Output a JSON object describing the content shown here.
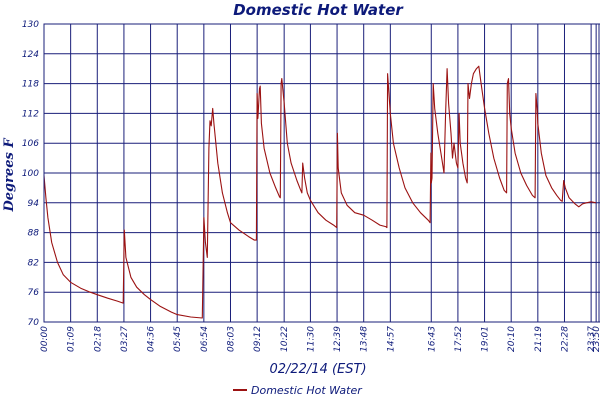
{
  "colors": {
    "text": "#0d1a7a",
    "grid": "#1a1f7a",
    "series": "#9b1212",
    "background": "#ffffff"
  },
  "chart_data": {
    "type": "line",
    "title": "Domestic Hot Water",
    "xlabel": "02/22/14 (EST)",
    "ylabel": "Degrees F",
    "ylim": [
      70,
      130
    ],
    "yticks": [
      70,
      76,
      82,
      88,
      94,
      100,
      106,
      112,
      118,
      124,
      130
    ],
    "xlim_hours": [
      0,
      24.0
    ],
    "xticks": [
      "00:00",
      "01:09",
      "02:18",
      "03:27",
      "04:36",
      "05:45",
      "06:54",
      "08:03",
      "09:12",
      "10:22",
      "11:30",
      "12:39",
      "13:48",
      "14:57",
      "16:43",
      "17:52",
      "19:01",
      "20:10",
      "21:19",
      "22:28",
      "23:37",
      "23:50"
    ],
    "grid": true,
    "legend": {
      "position": "bottom-center",
      "entries": [
        "Domestic Hot Water"
      ]
    },
    "series": [
      {
        "name": "Domestic Hot Water",
        "points": [
          [
            "00:00",
            99.5
          ],
          [
            "00:05",
            95
          ],
          [
            "00:10",
            91
          ],
          [
            "00:20",
            86
          ],
          [
            "00:35",
            82
          ],
          [
            "00:50",
            79.5
          ],
          [
            "01:09",
            78
          ],
          [
            "01:35",
            76.8
          ],
          [
            "02:00",
            76
          ],
          [
            "02:18",
            75.5
          ],
          [
            "02:45",
            74.8
          ],
          [
            "03:10",
            74.2
          ],
          [
            "03:25",
            73.8
          ],
          [
            "03:28",
            88.5
          ],
          [
            "03:32",
            83
          ],
          [
            "03:45",
            79
          ],
          [
            "04:00",
            77
          ],
          [
            "04:20",
            75.5
          ],
          [
            "04:36",
            74.5
          ],
          [
            "05:00",
            73.2
          ],
          [
            "05:30",
            72
          ],
          [
            "05:45",
            71.5
          ],
          [
            "06:20",
            71
          ],
          [
            "06:50",
            70.8
          ],
          [
            "06:54",
            91
          ],
          [
            "06:58",
            86
          ],
          [
            "07:03",
            83
          ],
          [
            "07:07",
            105
          ],
          [
            "07:10",
            110.5
          ],
          [
            "07:13",
            109.5
          ],
          [
            "07:17",
            113
          ],
          [
            "07:20",
            110
          ],
          [
            "07:30",
            102
          ],
          [
            "07:42",
            96
          ],
          [
            "07:55",
            92
          ],
          [
            "08:03",
            90
          ],
          [
            "08:25",
            88.5
          ],
          [
            "08:50",
            87.2
          ],
          [
            "09:05",
            86.5
          ],
          [
            "09:10",
            86.5
          ],
          [
            "09:12",
            116
          ],
          [
            "09:14",
            111
          ],
          [
            "09:18",
            117
          ],
          [
            "09:20",
            117.5
          ],
          [
            "09:23",
            110
          ],
          [
            "09:30",
            105
          ],
          [
            "09:45",
            100
          ],
          [
            "10:00",
            97
          ],
          [
            "10:10",
            95.2
          ],
          [
            "10:12",
            95
          ],
          [
            "10:14",
            118
          ],
          [
            "10:16",
            119
          ],
          [
            "10:22",
            114
          ],
          [
            "10:30",
            106
          ],
          [
            "10:40",
            102
          ],
          [
            "10:55",
            98.5
          ],
          [
            "11:05",
            96.5
          ],
          [
            "11:08",
            96
          ],
          [
            "11:10",
            102
          ],
          [
            "11:15",
            99
          ],
          [
            "11:22",
            96
          ],
          [
            "11:30",
            94.5
          ],
          [
            "11:50",
            92
          ],
          [
            "12:10",
            90.5
          ],
          [
            "12:30",
            89.5
          ],
          [
            "12:38",
            89
          ],
          [
            "12:40",
            108
          ],
          [
            "12:42",
            101
          ],
          [
            "12:50",
            96
          ],
          [
            "13:05",
            93.5
          ],
          [
            "13:25",
            92
          ],
          [
            "13:48",
            91.5
          ],
          [
            "14:10",
            90.5
          ],
          [
            "14:30",
            89.5
          ],
          [
            "14:45",
            89.2
          ],
          [
            "14:48",
            89
          ],
          [
            "14:50",
            120
          ],
          [
            "14:57",
            112
          ],
          [
            "15:05",
            106
          ],
          [
            "15:20",
            101
          ],
          [
            "15:35",
            97
          ],
          [
            "15:55",
            94
          ],
          [
            "16:15",
            92
          ],
          [
            "16:35",
            90.5
          ],
          [
            "16:40",
            90
          ],
          [
            "16:42",
            104
          ],
          [
            "16:43",
            98
          ],
          [
            "16:45",
            99
          ],
          [
            "16:48",
            118
          ],
          [
            "16:52",
            113
          ],
          [
            "17:00",
            108
          ],
          [
            "17:10",
            103
          ],
          [
            "17:16",
            100
          ],
          [
            "17:20",
            112
          ],
          [
            "17:24",
            121
          ],
          [
            "17:28",
            114
          ],
          [
            "17:34",
            108
          ],
          [
            "17:38",
            103
          ],
          [
            "17:42",
            106
          ],
          [
            "17:48",
            102
          ],
          [
            "17:52",
            101
          ],
          [
            "17:55",
            112
          ],
          [
            "17:58",
            106
          ],
          [
            "18:05",
            102
          ],
          [
            "18:12",
            99
          ],
          [
            "18:16",
            98
          ],
          [
            "18:18",
            118
          ],
          [
            "18:22",
            115
          ],
          [
            "18:27",
            118
          ],
          [
            "18:32",
            120
          ],
          [
            "18:40",
            121
          ],
          [
            "18:46",
            121.5
          ],
          [
            "18:52",
            118
          ],
          [
            "19:01",
            113
          ],
          [
            "19:12",
            108
          ],
          [
            "19:25",
            103
          ],
          [
            "19:40",
            99
          ],
          [
            "19:52",
            96.5
          ],
          [
            "19:58",
            96
          ],
          [
            "20:00",
            118
          ],
          [
            "20:03",
            119
          ],
          [
            "20:06",
            112
          ],
          [
            "20:10",
            109
          ],
          [
            "20:20",
            104
          ],
          [
            "20:35",
            100
          ],
          [
            "20:50",
            97.5
          ],
          [
            "21:05",
            95.5
          ],
          [
            "21:12",
            95
          ],
          [
            "21:14",
            116
          ],
          [
            "21:17",
            113
          ],
          [
            "21:19",
            110
          ],
          [
            "21:28",
            104
          ],
          [
            "21:40",
            99.5
          ],
          [
            "21:55",
            97
          ],
          [
            "22:08",
            95.5
          ],
          [
            "22:18",
            94.5
          ],
          [
            "22:22",
            94.3
          ],
          [
            "22:26",
            98.5
          ],
          [
            "22:30",
            97
          ],
          [
            "22:40",
            95
          ],
          [
            "22:55",
            93.8
          ],
          [
            "23:05",
            93.2
          ],
          [
            "23:15",
            93.8
          ],
          [
            "23:25",
            94
          ],
          [
            "23:37",
            94.2
          ],
          [
            "23:50",
            94
          ]
        ]
      }
    ]
  }
}
